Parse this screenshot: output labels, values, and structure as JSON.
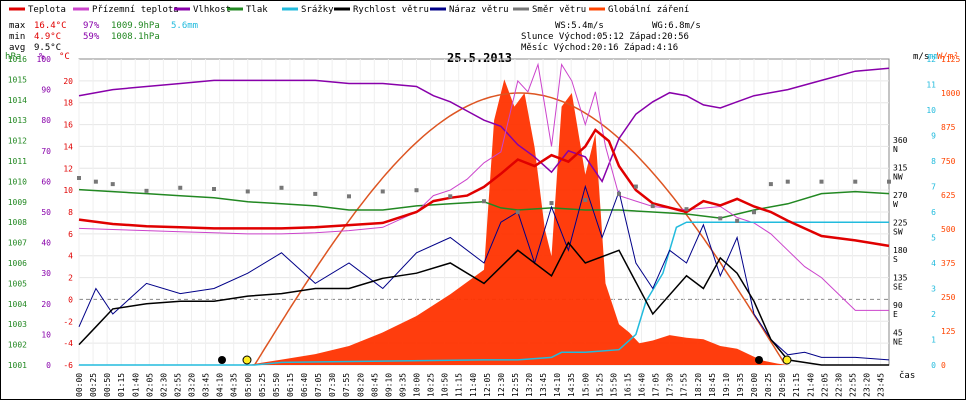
{
  "legend": [
    {
      "label": "Teplota",
      "color": "#e00000"
    },
    {
      "label": "Přízemní teplota",
      "color": "#cc44cc"
    },
    {
      "label": "Vlhkost",
      "color": "#8800aa"
    },
    {
      "label": "Tlak",
      "color": "#228822"
    },
    {
      "label": "Srážky",
      "color": "#22bbdd"
    },
    {
      "label": "Rychlost větru",
      "color": "#000000"
    },
    {
      "label": "Náraz větru",
      "color": "#000088"
    },
    {
      "label": "Směr větru",
      "color": "#777777"
    },
    {
      "label": "Globální záření",
      "color": "#ff4400"
    }
  ],
  "stats": {
    "max_label": "max",
    "min_label": "min",
    "avg_label": "avg",
    "max_temp": "16.4°C",
    "max_hum": "97%",
    "max_press": "1009.9hPa",
    "max_rain": "5.6mm",
    "min_temp": "4.9°C",
    "min_hum": "59%",
    "min_press": "1008.1hPa",
    "avg_temp": "9.5°C",
    "ws": "WS:5.4m/s",
    "wg": "WG:6.8m/s",
    "sun": "Slunce Východ:05:12  Západ:20:56",
    "moon": "Měsíc  Východ:20:16  Západ:4:16"
  },
  "date": "25.5.2013",
  "axes": {
    "hpa_unit": "hPa",
    "pct_unit": "%",
    "c_unit": "°C",
    "ms_unit": "m/s",
    "mm_unit": "mm",
    "wm_unit": "W/m²",
    "time_unit": "čas"
  },
  "chart_data": {
    "type": "line",
    "title": "25.5.2013",
    "x_range": [
      "00:00",
      "24:00"
    ],
    "left_axes": {
      "pressure_hpa": {
        "range": [
          1001,
          1016
        ],
        "ticks": [
          "1001",
          "1002",
          "1003",
          "1004",
          "1005",
          "1006",
          "1007",
          "1008",
          "1009",
          "1010",
          "1011",
          "1012",
          "1013",
          "1014",
          "1015",
          "1016"
        ]
      },
      "humidity_pct": {
        "range": [
          0,
          100
        ],
        "ticks": [
          "0",
          "10",
          "20",
          "30",
          "40",
          "50",
          "60",
          "70",
          "80",
          "90",
          "100"
        ]
      },
      "temperature_c": {
        "range": [
          -6,
          22
        ],
        "ticks": [
          "-6",
          "-4",
          "-2",
          "0",
          "2",
          "4",
          "6",
          "8",
          "10",
          "12",
          "14",
          "16",
          "18",
          "20"
        ]
      }
    },
    "right_axes": {
      "wind_direction": {
        "ticks": [
          "45 NE",
          "90 E",
          "135 SE",
          "180 S",
          "225 SW",
          "270 W",
          "315 NW",
          "360 N"
        ]
      },
      "wind_speed_ms": {
        "range": [
          0,
          12
        ],
        "ticks": [
          "0",
          "1",
          "2",
          "3",
          "4",
          "5",
          "6",
          "7",
          "8",
          "9",
          "10",
          "11",
          "12"
        ]
      },
      "radiation_wm2": {
        "range": [
          0,
          1125
        ],
        "ticks": [
          "0",
          "125",
          "250",
          "375",
          "500",
          "625",
          "750",
          "875",
          "1000",
          "1125"
        ]
      }
    },
    "x_tick_labels": [
      "00:00",
      "00:25",
      "00:50",
      "01:15",
      "01:40",
      "02:05",
      "02:30",
      "02:55",
      "03:20",
      "03:45",
      "04:10",
      "04:35",
      "05:00",
      "05:25",
      "05:50",
      "06:15",
      "06:40",
      "07:05",
      "07:30",
      "07:55",
      "08:20",
      "08:45",
      "09:10",
      "09:35",
      "10:00",
      "10:25",
      "10:50",
      "11:15",
      "11:40",
      "12:05",
      "12:30",
      "12:55",
      "13:20",
      "13:45",
      "14:10",
      "14:35",
      "15:00",
      "15:25",
      "15:50",
      "16:15",
      "16:40",
      "17:05",
      "17:30",
      "17:55",
      "18:20",
      "18:45",
      "19:10",
      "19:35",
      "20:00",
      "20:25",
      "20:50",
      "21:15",
      "21:40",
      "22:05",
      "22:30",
      "22:55",
      "23:20",
      "23:45"
    ],
    "series": [
      {
        "name": "Teplota",
        "unit": "°C",
        "x": [
          0,
          1,
          2,
          3,
          4,
          5,
          6,
          7,
          8,
          9,
          10,
          10.5,
          11,
          11.5,
          12,
          12.5,
          13,
          13.5,
          14,
          14.5,
          15,
          15.3,
          15.7,
          16,
          16.5,
          17,
          18,
          18.5,
          19,
          19.5,
          20,
          20.5,
          21,
          21.5,
          22,
          23,
          24
        ],
        "values": [
          7.3,
          6.9,
          6.7,
          6.6,
          6.5,
          6.5,
          6.5,
          6.6,
          6.8,
          7.0,
          8.0,
          9.0,
          9.3,
          9.5,
          10.3,
          11.5,
          12.8,
          12.2,
          13.2,
          12.6,
          14.0,
          15.5,
          14.5,
          12.2,
          10.0,
          8.8,
          8.0,
          9.0,
          8.6,
          9.2,
          8.5,
          8.0,
          7.2,
          6.5,
          5.8,
          5.4,
          4.9
        ]
      },
      {
        "name": "Přízemní teplota",
        "unit": "°C",
        "x": [
          0,
          1,
          2,
          3,
          4,
          5,
          6,
          7,
          8,
          9,
          10,
          10.5,
          11,
          11.5,
          12,
          12.5,
          13,
          13.3,
          13.6,
          14,
          14.3,
          14.6,
          15,
          15.3,
          15.6,
          16,
          16.5,
          17,
          18,
          19,
          19.5,
          20,
          20.5,
          21,
          21.5,
          22,
          23,
          24
        ],
        "values": [
          6.5,
          6.4,
          6.3,
          6.2,
          6.1,
          6.0,
          6.0,
          6.1,
          6.3,
          6.6,
          8.0,
          9.5,
          10.0,
          11.0,
          12.5,
          13.5,
          20.0,
          19.0,
          21.5,
          14.0,
          21.5,
          20.0,
          16.0,
          19.0,
          14.0,
          9.5,
          9.0,
          8.5,
          8.2,
          8.5,
          7.5,
          7.0,
          6.0,
          4.5,
          3.0,
          2.0,
          -1.0,
          -1.0
        ]
      },
      {
        "name": "Vlhkost",
        "unit": "%",
        "x": [
          0,
          1,
          2,
          3,
          4,
          5,
          6,
          7,
          8,
          9,
          10,
          10.5,
          11,
          11.5,
          12,
          12.5,
          13,
          13.5,
          14,
          14.5,
          15,
          15.5,
          16,
          16.5,
          17,
          17.5,
          18,
          18.5,
          19,
          19.5,
          20,
          21,
          22,
          23,
          24
        ],
        "values": [
          88,
          90,
          91,
          92,
          93,
          93,
          93,
          93,
          92,
          92,
          91,
          88,
          86,
          83,
          80,
          78,
          72,
          68,
          63,
          70,
          68,
          60,
          74,
          82,
          86,
          89,
          88,
          85,
          84,
          86,
          88,
          90,
          93,
          96,
          97
        ]
      },
      {
        "name": "Tlak",
        "unit": "hPa",
        "x": [
          0,
          1,
          2,
          3,
          4,
          5,
          6,
          7,
          8,
          9,
          10,
          11,
          12,
          12.5,
          13,
          14,
          15,
          16,
          17,
          18,
          19,
          20,
          21,
          22,
          23,
          24
        ],
        "values": [
          1009.6,
          1009.5,
          1009.4,
          1009.3,
          1009.2,
          1009.0,
          1008.9,
          1008.8,
          1008.6,
          1008.6,
          1008.8,
          1008.9,
          1009.0,
          1008.7,
          1008.6,
          1008.7,
          1008.6,
          1008.6,
          1008.5,
          1008.4,
          1008.2,
          1008.6,
          1008.9,
          1009.4,
          1009.5,
          1009.4
        ]
      },
      {
        "name": "Srážky",
        "unit": "mm",
        "x": [
          0,
          5.2,
          6,
          12,
          13,
          14,
          14.3,
          15,
          16,
          16.5,
          16.8,
          17.3,
          17.7,
          18,
          24
        ],
        "values": [
          0,
          0,
          0.1,
          0.2,
          0.2,
          0.3,
          0.5,
          0.5,
          0.6,
          1.2,
          2.5,
          3.6,
          5.4,
          5.6,
          5.6
        ]
      },
      {
        "name": "Rychlost větru",
        "unit": "m/s",
        "x": [
          0,
          0.5,
          1,
          2,
          3,
          4,
          5,
          6,
          7,
          8,
          9,
          10,
          11,
          12,
          13,
          14,
          14.5,
          15,
          16,
          17,
          18,
          18.5,
          19,
          19.5,
          20,
          20.5,
          21,
          22,
          23,
          24
        ],
        "values": [
          0.8,
          1.5,
          2.2,
          2.4,
          2.5,
          2.5,
          2.7,
          2.8,
          3.0,
          3.0,
          3.4,
          3.6,
          4.0,
          3.2,
          4.5,
          3.5,
          4.8,
          4.0,
          4.5,
          2.0,
          3.5,
          3.0,
          4.2,
          3.6,
          2.5,
          1.0,
          0.2,
          0.0,
          0.0,
          0.0
        ]
      },
      {
        "name": "Náraz větru",
        "unit": "m/s",
        "x": [
          0,
          0.5,
          1,
          2,
          3,
          4,
          5,
          6,
          7,
          8,
          9,
          10,
          11,
          12,
          12.5,
          13,
          13.5,
          14,
          14.5,
          15,
          15.5,
          16,
          16.5,
          17,
          17.5,
          18,
          18.5,
          19,
          19.5,
          20,
          20.5,
          21,
          21.5,
          22,
          23,
          24
        ],
        "values": [
          1.5,
          3.0,
          2.0,
          3.2,
          2.8,
          3.0,
          3.6,
          4.4,
          3.2,
          4.0,
          3.0,
          4.4,
          5.0,
          4.0,
          5.6,
          6.0,
          4.0,
          6.2,
          4.5,
          7.0,
          5.0,
          6.8,
          4.0,
          3.0,
          4.5,
          4.0,
          5.5,
          3.5,
          5.0,
          2.0,
          1.0,
          0.4,
          0.5,
          0.3,
          0.3,
          0.2
        ]
      },
      {
        "name": "Směr větru",
        "unit": "°",
        "x": [
          0,
          0.5,
          1,
          2,
          3,
          4,
          5,
          6,
          7,
          8,
          9,
          10,
          11,
          12,
          13,
          14,
          15,
          16,
          16.5,
          17,
          18,
          19,
          19.5,
          20,
          20.5,
          21,
          22,
          23,
          24
        ],
        "values": [
          306,
          300,
          296,
          285,
          290,
          288,
          284,
          290,
          280,
          276,
          284,
          286,
          276,
          268,
          250,
          265,
          270,
          280,
          292,
          260,
          255,
          240,
          236,
          250,
          296,
          300,
          300,
          300,
          300
        ]
      },
      {
        "name": "Globální záření",
        "unit": "W/m²",
        "x": [
          0,
          5,
          5.5,
          6,
          7,
          8,
          9,
          10,
          11,
          12,
          12.3,
          12.6,
          12.9,
          13.2,
          13.5,
          13.8,
          14,
          14.3,
          14.6,
          15,
          15.3,
          15.6,
          16,
          16.3,
          16.6,
          17,
          17.5,
          18,
          18.5,
          19,
          19.5,
          20,
          20.3,
          20.7,
          21,
          24
        ],
        "values": [
          0,
          0,
          10,
          20,
          40,
          70,
          120,
          180,
          260,
          350,
          900,
          1050,
          950,
          1000,
          800,
          500,
          400,
          950,
          1000,
          700,
          850,
          300,
          150,
          120,
          80,
          90,
          110,
          100,
          95,
          70,
          60,
          30,
          15,
          5,
          0,
          0
        ]
      }
    ]
  }
}
